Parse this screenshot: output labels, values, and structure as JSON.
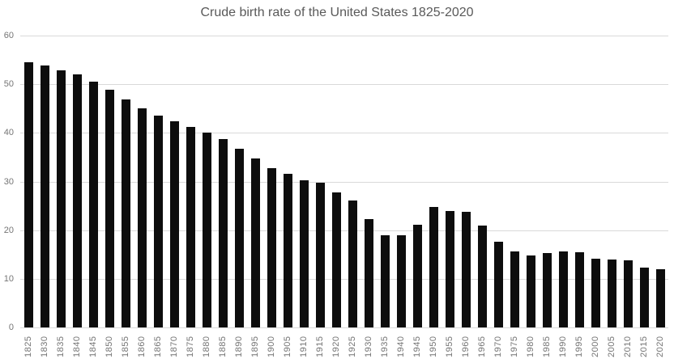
{
  "chart_data": {
    "type": "bar",
    "title": "Crude birth rate of the United States 1825-2020",
    "xlabel": "",
    "ylabel": "",
    "ylim": [
      0,
      60
    ],
    "yticks": [
      0,
      10,
      20,
      30,
      40,
      50,
      60
    ],
    "grid": true,
    "legend": "none",
    "bar_color": "#0d0d0d",
    "gridline_color": "#d9d9d9",
    "title_color": "#595959",
    "tick_label_color": "#757575",
    "categories": [
      "1825",
      "1830",
      "1835",
      "1840",
      "1845",
      "1850",
      "1855",
      "1860",
      "1865",
      "1870",
      "1875",
      "1880",
      "1885",
      "1890",
      "1895",
      "1900",
      "1905",
      "1910",
      "1915",
      "1920",
      "1925",
      "1930",
      "1935",
      "1940",
      "1945",
      "1950",
      "1955",
      "1960",
      "1965",
      "1970",
      "1975",
      "1980",
      "1985",
      "1990",
      "1995",
      "2000",
      "2005",
      "2010",
      "2015",
      "2020"
    ],
    "values": [
      54.6,
      53.8,
      52.9,
      52.1,
      50.5,
      48.8,
      46.8,
      45.1,
      43.5,
      42.4,
      41.3,
      40.1,
      38.7,
      36.7,
      34.8,
      32.8,
      31.5,
      30.2,
      29.7,
      27.8,
      26.1,
      22.3,
      19.0,
      18.9,
      21.1,
      24.7,
      24.0,
      23.7,
      21.0,
      17.6,
      15.6,
      14.8,
      15.3,
      15.6,
      15.5,
      14.2,
      13.9,
      13.8,
      12.3,
      11.9
    ]
  }
}
